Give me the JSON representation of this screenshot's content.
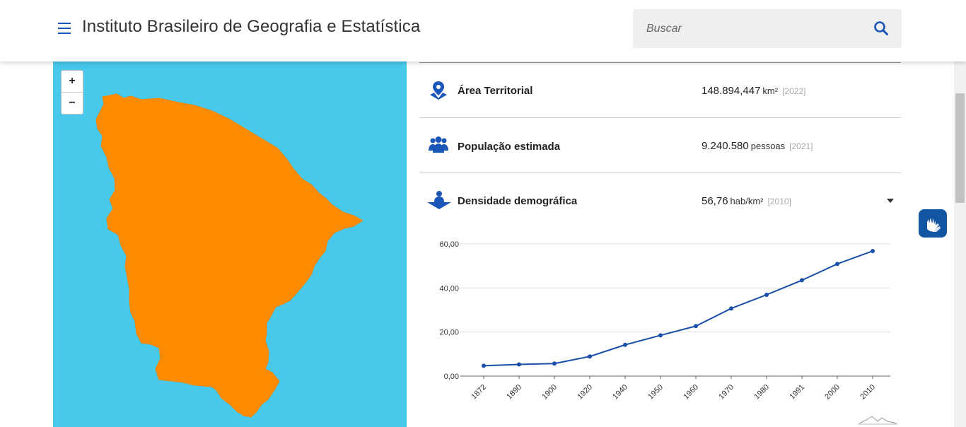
{
  "header": {
    "title": "Instituto Brasileiro de Geografia e Estatística",
    "search_placeholder": "Buscar"
  },
  "map": {
    "zoom_in": "+",
    "zoom_out": "−",
    "land_color": "#ff8c00",
    "water_color": "#48c8ea"
  },
  "indicators": [
    {
      "icon": "map-pin-icon",
      "label": "Área Territorial",
      "value": "148.894,447",
      "unit": "km²",
      "year": "[2022]"
    },
    {
      "icon": "people-icon",
      "label": "População estimada",
      "value": "9.240.580",
      "unit": "pessoas",
      "year": "[2021]"
    },
    {
      "icon": "density-icon",
      "label": "Densidade demográfica",
      "value": "56,76",
      "unit": "hab/km²",
      "year": "[2010]"
    }
  ],
  "chart_data": {
    "type": "line",
    "categories": [
      "1872",
      "1890",
      "1900",
      "1920",
      "1940",
      "1950",
      "1960",
      "1970",
      "1980",
      "1991",
      "2000",
      "2010"
    ],
    "series": [
      {
        "values": [
          4.7,
          5.3,
          5.7,
          8.9,
          14.2,
          18.5,
          22.7,
          30.7,
          36.9,
          43.5,
          50.9,
          56.76
        ]
      }
    ],
    "yticks": [
      "0,00",
      "20,00",
      "40,00",
      "60,00"
    ],
    "ylim": [
      0,
      60
    ],
    "grid": true,
    "color": "#1a4fa8"
  },
  "colors": {
    "accent": "#1a57b8",
    "accessibility": "#1155a3"
  }
}
